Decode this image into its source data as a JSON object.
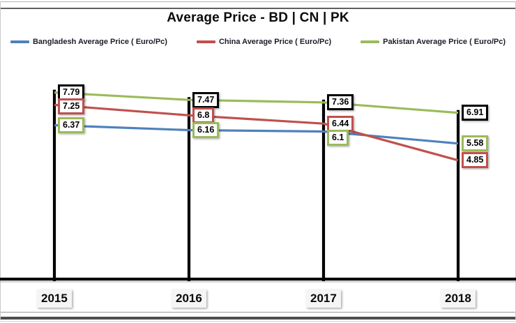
{
  "title": "Average Price - BD | CN | PK",
  "legend": [
    {
      "label": "Bangladesh Average Price ( Euro/Pc)",
      "color": "#4F81BD"
    },
    {
      "label": "China Average Price ( Euro/Pc)",
      "color": "#C0504D"
    },
    {
      "label": "Pakistan Average Price ( Euro/Pc)",
      "color": "#9BBB59"
    }
  ],
  "chart_data": {
    "type": "line",
    "title": "Average Price - BD | CN | PK",
    "categories": [
      "2015",
      "2016",
      "2017",
      "2018"
    ],
    "series": [
      {
        "name": "Bangladesh Average Price ( Euro/Pc)",
        "values": [
          6.37,
          6.16,
          6.1,
          5.58
        ],
        "labels": [
          "6.37",
          "6.16",
          "6.1",
          "5.58"
        ],
        "line_color": "#4F81BD",
        "label_border_color": "#9BBB59"
      },
      {
        "name": "China Average Price ( Euro/Pc)",
        "values": [
          7.25,
          6.8,
          6.44,
          4.85
        ],
        "labels": [
          "7.25",
          "6.8",
          "6.44",
          "4.85"
        ],
        "line_color": "#C0504D",
        "label_border_color": "#C0504D"
      },
      {
        "name": "Pakistan Average Price ( Euro/Pc)",
        "values": [
          7.79,
          7.47,
          7.36,
          6.91
        ],
        "labels": [
          "7.79",
          "7.47",
          "7.36",
          "6.91"
        ],
        "line_color": "#9BBB59",
        "label_border_color": "#000000"
      }
    ],
    "xlabel": "",
    "ylabel": "",
    "ylim": [
      0,
      12
    ],
    "grid": false,
    "legend_position": "top",
    "axis_color": "#000000",
    "category_drop_lines": true,
    "data_labels_boxed": true,
    "background": "#ffffff"
  }
}
